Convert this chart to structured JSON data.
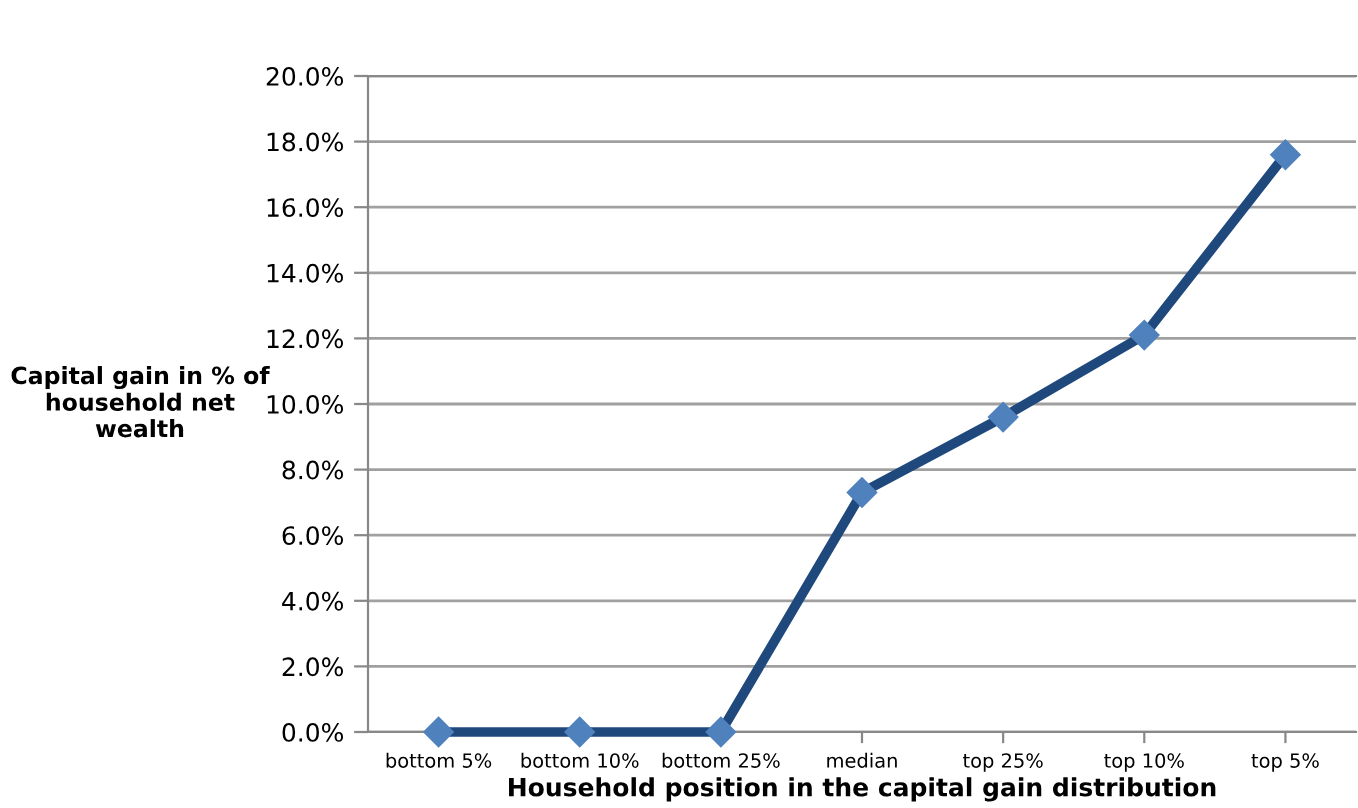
{
  "chart_data": {
    "type": "line",
    "xlabel": "Household position in the capital gain distribution",
    "ylabel": "Capital gain in % of\nhousehold net\nwealth",
    "categories": [
      "bottom 5%",
      "bottom 10%",
      "bottom 25%",
      "median",
      "top 25%",
      "top 10%",
      "top 5%"
    ],
    "series": [
      {
        "color": "#1f497d",
        "values": [
          0,
          0,
          0,
          7.3,
          9.6,
          12.1,
          17.6
        ]
      }
    ],
    "marker": "diamond",
    "ylim": [
      0,
      20
    ],
    "yticks": [
      {
        "value": 0,
        "label": "0.0%"
      },
      {
        "value": 2,
        "label": "2.0%"
      },
      {
        "value": 4,
        "label": "4.0%"
      },
      {
        "value": 6,
        "label": "6.0%"
      },
      {
        "value": 8,
        "label": "8.0%"
      },
      {
        "value": 10,
        "label": "10.0%"
      },
      {
        "value": 12,
        "label": "12.0%"
      },
      {
        "value": 14,
        "label": "14.0%"
      },
      {
        "value": 16,
        "label": "16.0%"
      },
      {
        "value": 18,
        "label": "18.0%"
      },
      {
        "value": 20,
        "label": "20.0%"
      }
    ],
    "grid": "y"
  }
}
